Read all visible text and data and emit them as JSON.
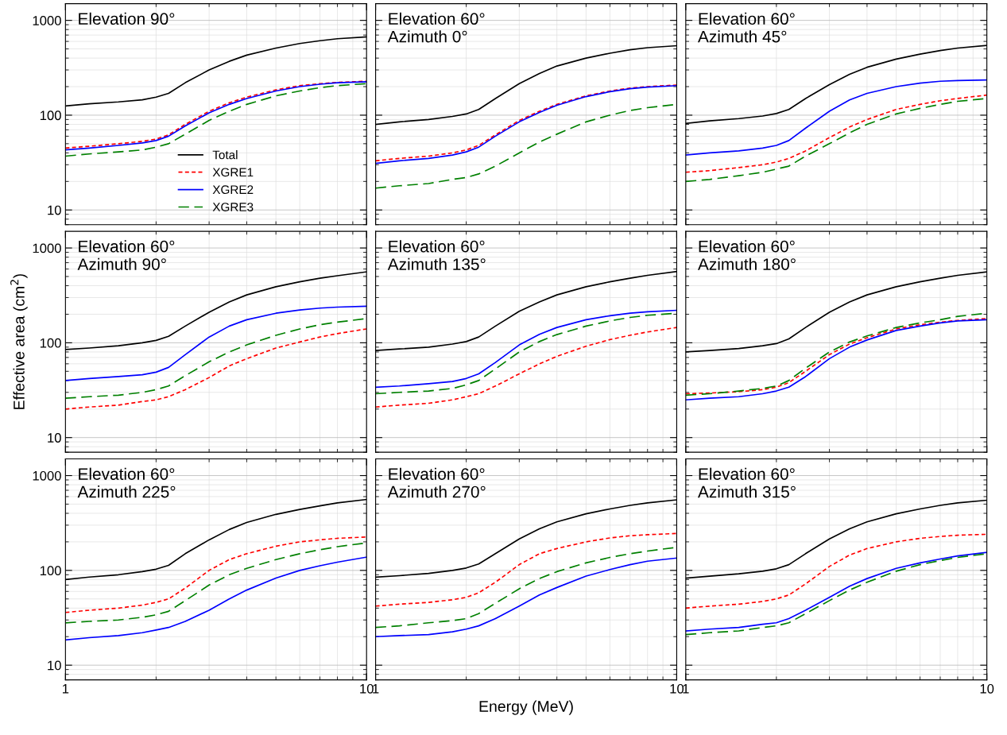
{
  "chart_data": [
    {
      "type": "line",
      "annotations": [
        "Elevation 90°"
      ],
      "tick_labels": "y",
      "legend": "lower center",
      "log": "xy",
      "grid": true,
      "xlim": [
        1,
        10
      ],
      "ylim": [
        7,
        1500
      ],
      "xticks": [
        1,
        10
      ],
      "yticks": [
        10,
        100,
        1000
      ],
      "x": [
        1,
        1.2,
        1.5,
        1.8,
        2,
        2.2,
        2.5,
        3,
        3.5,
        4,
        5,
        6,
        7,
        8,
        10
      ],
      "series": [
        {
          "name": "Total",
          "color": "#000000",
          "line_style": "solid",
          "values": [
            125,
            132,
            138,
            145,
            155,
            170,
            220,
            300,
            370,
            430,
            510,
            570,
            610,
            640,
            670
          ]
        },
        {
          "name": "XGRE1",
          "color": "#ff0000",
          "line_style": "dotted",
          "values": [
            45,
            47,
            50,
            53,
            56,
            62,
            80,
            110,
            135,
            155,
            185,
            205,
            215,
            222,
            228
          ]
        },
        {
          "name": "XGRE2",
          "color": "#0000ff",
          "line_style": "solid",
          "values": [
            43,
            45,
            48,
            51,
            54,
            60,
            77,
            106,
            130,
            150,
            180,
            200,
            212,
            220,
            225
          ]
        },
        {
          "name": "XGRE3",
          "color": "#008000",
          "line_style": "dashed",
          "values": [
            37,
            39,
            41,
            43,
            46,
            50,
            63,
            88,
            110,
            130,
            160,
            180,
            195,
            205,
            215
          ]
        }
      ]
    },
    {
      "type": "line",
      "annotations": [
        "Elevation 60°\nAzimuth 0°"
      ],
      "tick_labels": false,
      "log": "xy",
      "grid": true,
      "xlim": [
        1,
        10
      ],
      "ylim": [
        7,
        1500
      ],
      "xticks": [
        1,
        10
      ],
      "yticks": [
        10,
        100,
        1000
      ],
      "x": [
        1,
        1.2,
        1.5,
        1.8,
        2,
        2.2,
        2.5,
        3,
        3.5,
        4,
        5,
        6,
        7,
        8,
        10
      ],
      "series": [
        {
          "color": "#000000",
          "line_style": "solid",
          "values": [
            80,
            85,
            90,
            97,
            103,
            115,
            150,
            215,
            275,
            330,
            400,
            450,
            490,
            515,
            540
          ]
        },
        {
          "color": "#ff0000",
          "line_style": "dotted",
          "values": [
            33,
            35,
            37,
            40,
            43,
            48,
            62,
            88,
            110,
            130,
            160,
            180,
            193,
            200,
            208
          ]
        },
        {
          "color": "#0000ff",
          "line_style": "solid",
          "values": [
            31,
            33,
            35,
            38,
            41,
            46,
            60,
            85,
            107,
            127,
            157,
            177,
            190,
            198,
            205
          ]
        },
        {
          "color": "#008000",
          "line_style": "dashed",
          "values": [
            17,
            18,
            19,
            21,
            22,
            24,
            29,
            40,
            52,
            63,
            85,
            100,
            112,
            120,
            130
          ]
        }
      ]
    },
    {
      "type": "line",
      "annotations": [
        "Elevation 60°\nAzimuth 45°"
      ],
      "tick_labels": false,
      "log": "xy",
      "grid": true,
      "xlim": [
        1,
        10
      ],
      "ylim": [
        7,
        1500
      ],
      "xticks": [
        1,
        10
      ],
      "yticks": [
        10,
        100,
        1000
      ],
      "x": [
        1,
        1.2,
        1.5,
        1.8,
        2,
        2.2,
        2.5,
        3,
        3.5,
        4,
        5,
        6,
        7,
        8,
        10
      ],
      "series": [
        {
          "color": "#000000",
          "line_style": "solid",
          "values": [
            82,
            87,
            92,
            98,
            104,
            115,
            150,
            210,
            270,
            320,
            390,
            440,
            480,
            510,
            545
          ]
        },
        {
          "color": "#ff0000",
          "line_style": "dotted",
          "values": [
            25,
            26,
            28,
            30,
            32,
            35,
            42,
            58,
            75,
            90,
            115,
            130,
            142,
            150,
            163
          ]
        },
        {
          "color": "#0000ff",
          "line_style": "solid",
          "values": [
            38,
            40,
            42,
            45,
            48,
            54,
            73,
            110,
            145,
            170,
            200,
            218,
            228,
            232,
            235
          ]
        },
        {
          "color": "#008000",
          "line_style": "dashed",
          "values": [
            20,
            21,
            23,
            25,
            27,
            29,
            37,
            50,
            65,
            80,
            103,
            118,
            130,
            140,
            150
          ]
        }
      ]
    },
    {
      "type": "line",
      "annotations": [
        "Elevation 60°\nAzimuth 90°"
      ],
      "tick_labels": "y",
      "ylabel": "Effective area (cm$^{2}$)",
      "log": "xy",
      "grid": true,
      "xlim": [
        1,
        10
      ],
      "ylim": [
        7,
        1500
      ],
      "xticks": [
        1,
        10
      ],
      "yticks": [
        10,
        100,
        1000
      ],
      "x": [
        1,
        1.2,
        1.5,
        1.8,
        2,
        2.2,
        2.5,
        3,
        3.5,
        4,
        5,
        6,
        7,
        8,
        10
      ],
      "series": [
        {
          "color": "#000000",
          "line_style": "solid",
          "values": [
            85,
            88,
            93,
            100,
            106,
            117,
            150,
            210,
            270,
            320,
            390,
            440,
            480,
            510,
            560
          ]
        },
        {
          "color": "#ff0000",
          "line_style": "dotted",
          "values": [
            20,
            21,
            22,
            24,
            25,
            27,
            32,
            43,
            57,
            68,
            88,
            102,
            115,
            125,
            140
          ]
        },
        {
          "color": "#0000ff",
          "line_style": "solid",
          "values": [
            40,
            42,
            44,
            46,
            49,
            55,
            75,
            115,
            150,
            175,
            205,
            222,
            232,
            238,
            243
          ]
        },
        {
          "color": "#008000",
          "line_style": "dashed",
          "values": [
            26,
            27,
            28,
            30,
            32,
            35,
            45,
            63,
            80,
            95,
            120,
            140,
            155,
            165,
            180
          ]
        }
      ]
    },
    {
      "type": "line",
      "annotations": [
        "Elevation 60°\nAzimuth 135°"
      ],
      "tick_labels": false,
      "log": "xy",
      "grid": true,
      "xlim": [
        1,
        10
      ],
      "ylim": [
        7,
        1500
      ],
      "xticks": [
        1,
        10
      ],
      "yticks": [
        10,
        100,
        1000
      ],
      "x": [
        1,
        1.2,
        1.5,
        1.8,
        2,
        2.2,
        2.5,
        3,
        3.5,
        4,
        5,
        6,
        7,
        8,
        10
      ],
      "series": [
        {
          "color": "#000000",
          "line_style": "solid",
          "values": [
            83,
            86,
            90,
            97,
            103,
            115,
            150,
            215,
            270,
            320,
            390,
            440,
            480,
            515,
            565
          ]
        },
        {
          "color": "#ff0000",
          "line_style": "dotted",
          "values": [
            21,
            22,
            23,
            25,
            27,
            29,
            35,
            47,
            60,
            72,
            92,
            108,
            120,
            130,
            145
          ]
        },
        {
          "color": "#0000ff",
          "line_style": "solid",
          "values": [
            34,
            35,
            37,
            39,
            42,
            47,
            62,
            95,
            123,
            145,
            175,
            193,
            205,
            212,
            220
          ]
        },
        {
          "color": "#008000",
          "line_style": "dashed",
          "values": [
            29,
            30,
            31,
            33,
            36,
            40,
            53,
            80,
            103,
            122,
            150,
            170,
            185,
            195,
            205
          ]
        }
      ]
    },
    {
      "type": "line",
      "annotations": [
        "Elevation 60°\nAzimuth 180°"
      ],
      "tick_labels": false,
      "log": "xy",
      "grid": true,
      "xlim": [
        1,
        10
      ],
      "ylim": [
        7,
        1500
      ],
      "xticks": [
        1,
        10
      ],
      "yticks": [
        10,
        100,
        1000
      ],
      "x": [
        1,
        1.2,
        1.5,
        1.8,
        2,
        2.2,
        2.5,
        3,
        3.5,
        4,
        5,
        6,
        7,
        8,
        10
      ],
      "series": [
        {
          "color": "#000000",
          "line_style": "solid",
          "values": [
            80,
            83,
            87,
            93,
            98,
            110,
            145,
            210,
            270,
            320,
            390,
            440,
            480,
            515,
            560
          ]
        },
        {
          "color": "#ff0000",
          "line_style": "dotted",
          "values": [
            29,
            29.5,
            30.5,
            32,
            34,
            38,
            50,
            75,
            97,
            113,
            140,
            155,
            165,
            172,
            180
          ]
        },
        {
          "color": "#0000ff",
          "line_style": "solid",
          "values": [
            25,
            26,
            27,
            29,
            31,
            34,
            44,
            68,
            90,
            107,
            135,
            150,
            162,
            170,
            175
          ]
        },
        {
          "color": "#008000",
          "line_style": "dashed",
          "values": [
            28,
            29,
            31,
            33,
            35,
            40,
            54,
            80,
            102,
            118,
            145,
            162,
            175,
            190,
            205
          ]
        }
      ]
    },
    {
      "type": "line",
      "annotations": [
        "Elevation 60°\nAzimuth 225°"
      ],
      "log": "xy",
      "grid": true,
      "xlim": [
        1,
        10
      ],
      "ylim": [
        7,
        1500
      ],
      "xticks": [
        1,
        10
      ],
      "yticks": [
        10,
        100,
        1000
      ],
      "x": [
        1,
        1.2,
        1.5,
        1.8,
        2,
        2.2,
        2.5,
        3,
        3.5,
        4,
        5,
        6,
        7,
        8,
        10
      ],
      "series": [
        {
          "color": "#000000",
          "line_style": "solid",
          "values": [
            80,
            85,
            90,
            97,
            103,
            113,
            150,
            210,
            270,
            320,
            390,
            440,
            480,
            515,
            560
          ]
        },
        {
          "color": "#ff0000",
          "line_style": "dotted",
          "values": [
            36,
            38,
            40,
            43,
            46,
            50,
            65,
            100,
            130,
            150,
            180,
            200,
            210,
            218,
            225
          ]
        },
        {
          "color": "#0000ff",
          "line_style": "solid",
          "values": [
            18.5,
            19.5,
            20.5,
            22,
            23.5,
            25,
            29,
            38,
            50,
            62,
            83,
            100,
            112,
            122,
            138
          ]
        },
        {
          "color": "#008000",
          "line_style": "dashed",
          "values": [
            28,
            29,
            30,
            32,
            34,
            37,
            48,
            70,
            90,
            105,
            130,
            150,
            165,
            178,
            195
          ]
        }
      ]
    },
    {
      "type": "line",
      "annotations": [
        "Elevation 60°\nAzimuth 270°"
      ],
      "tick_labels": "x",
      "xlabel": "Energy (MeV)",
      "log": "xy",
      "grid": true,
      "xlim": [
        1,
        10
      ],
      "ylim": [
        7,
        1500
      ],
      "xticks": [
        1,
        10
      ],
      "yticks": [
        10,
        100,
        1000
      ],
      "x": [
        1,
        1.2,
        1.5,
        1.8,
        2,
        2.2,
        2.5,
        3,
        3.5,
        4,
        5,
        6,
        7,
        8,
        10
      ],
      "series": [
        {
          "color": "#000000",
          "line_style": "solid",
          "values": [
            85,
            88,
            93,
            100,
            106,
            117,
            150,
            215,
            275,
            325,
            395,
            445,
            485,
            515,
            555
          ]
        },
        {
          "color": "#ff0000",
          "line_style": "dotted",
          "values": [
            42,
            44,
            46,
            49,
            52,
            58,
            75,
            115,
            150,
            170,
            200,
            220,
            232,
            238,
            245
          ]
        },
        {
          "color": "#0000ff",
          "line_style": "solid",
          "values": [
            20,
            20.5,
            21,
            22.5,
            24,
            26,
            31,
            42,
            55,
            66,
            87,
            102,
            115,
            125,
            135
          ]
        },
        {
          "color": "#008000",
          "line_style": "dashed",
          "values": [
            25,
            26,
            28,
            29.5,
            31,
            35,
            45,
            64,
            82,
            97,
            120,
            137,
            150,
            160,
            175
          ]
        }
      ]
    },
    {
      "type": "line",
      "annotations": [
        "Elevation 60°\nAzimuth 315°"
      ],
      "tick_labels": "x",
      "log": "xy",
      "grid": true,
      "xlim": [
        1,
        10
      ],
      "ylim": [
        7,
        1500
      ],
      "xticks": [
        1,
        10
      ],
      "yticks": [
        10,
        100,
        1000
      ],
      "x": [
        1,
        1.2,
        1.5,
        1.8,
        2,
        2.2,
        2.5,
        3,
        3.5,
        4,
        5,
        6,
        7,
        8,
        10
      ],
      "series": [
        {
          "color": "#000000",
          "line_style": "solid",
          "values": [
            83,
            87,
            92,
            98,
            104,
            115,
            150,
            215,
            275,
            325,
            395,
            445,
            485,
            515,
            550
          ]
        },
        {
          "color": "#ff0000",
          "line_style": "dotted",
          "values": [
            40,
            42,
            44,
            47,
            50,
            55,
            72,
            110,
            145,
            170,
            200,
            218,
            228,
            235,
            240
          ]
        },
        {
          "color": "#0000ff",
          "line_style": "solid",
          "values": [
            23,
            24,
            25,
            27,
            28,
            31,
            38,
            52,
            68,
            82,
            105,
            120,
            132,
            142,
            155
          ]
        },
        {
          "color": "#008000",
          "line_style": "dashed",
          "values": [
            21,
            22,
            23,
            25,
            26,
            28,
            35,
            48,
            62,
            75,
            98,
            115,
            127,
            137,
            150
          ]
        }
      ]
    }
  ]
}
